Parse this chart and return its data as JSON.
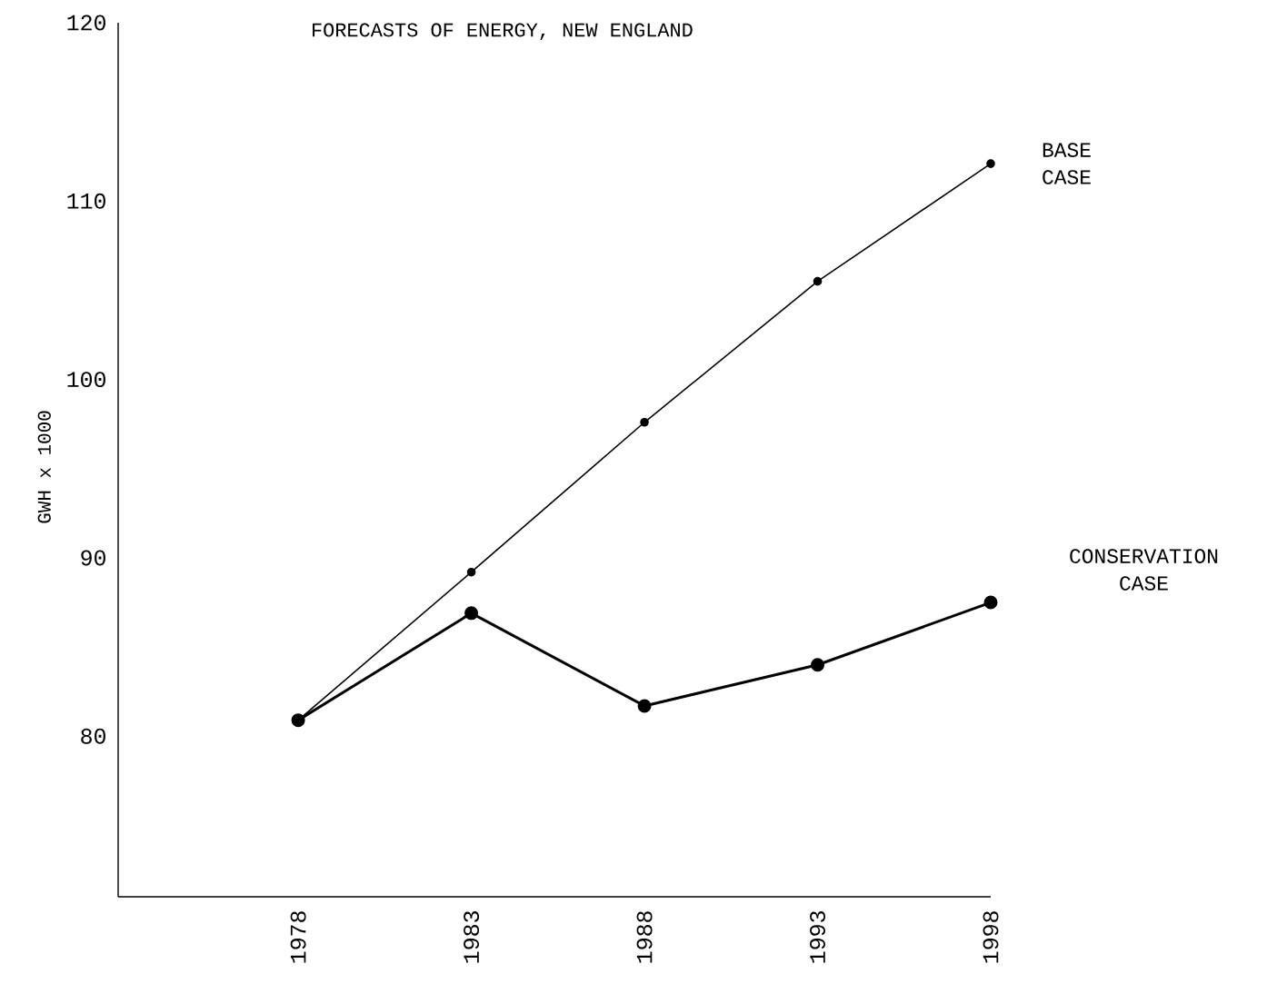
{
  "chart_data": {
    "type": "line",
    "title": "FORECASTS OF ENERGY, NEW ENGLAND",
    "ylabel": "GWH x 1000",
    "categories": [
      "1978",
      "1983",
      "1988",
      "1993",
      "1998"
    ],
    "series": [
      {
        "name": "BASE CASE",
        "color": "#000000",
        "values": [
          80.9,
          89.2,
          97.6,
          105.5,
          112.1
        ]
      },
      {
        "name": "CONSERVATION CASE",
        "color": "#000000",
        "values": [
          80.9,
          86.9,
          81.7,
          84.0,
          87.5
        ]
      }
    ],
    "ylim": [
      71,
      120
    ],
    "yticks": [
      80,
      90,
      100,
      110,
      120
    ],
    "marker": "circle",
    "line_style": "solid",
    "grid": false,
    "legend": false
  }
}
